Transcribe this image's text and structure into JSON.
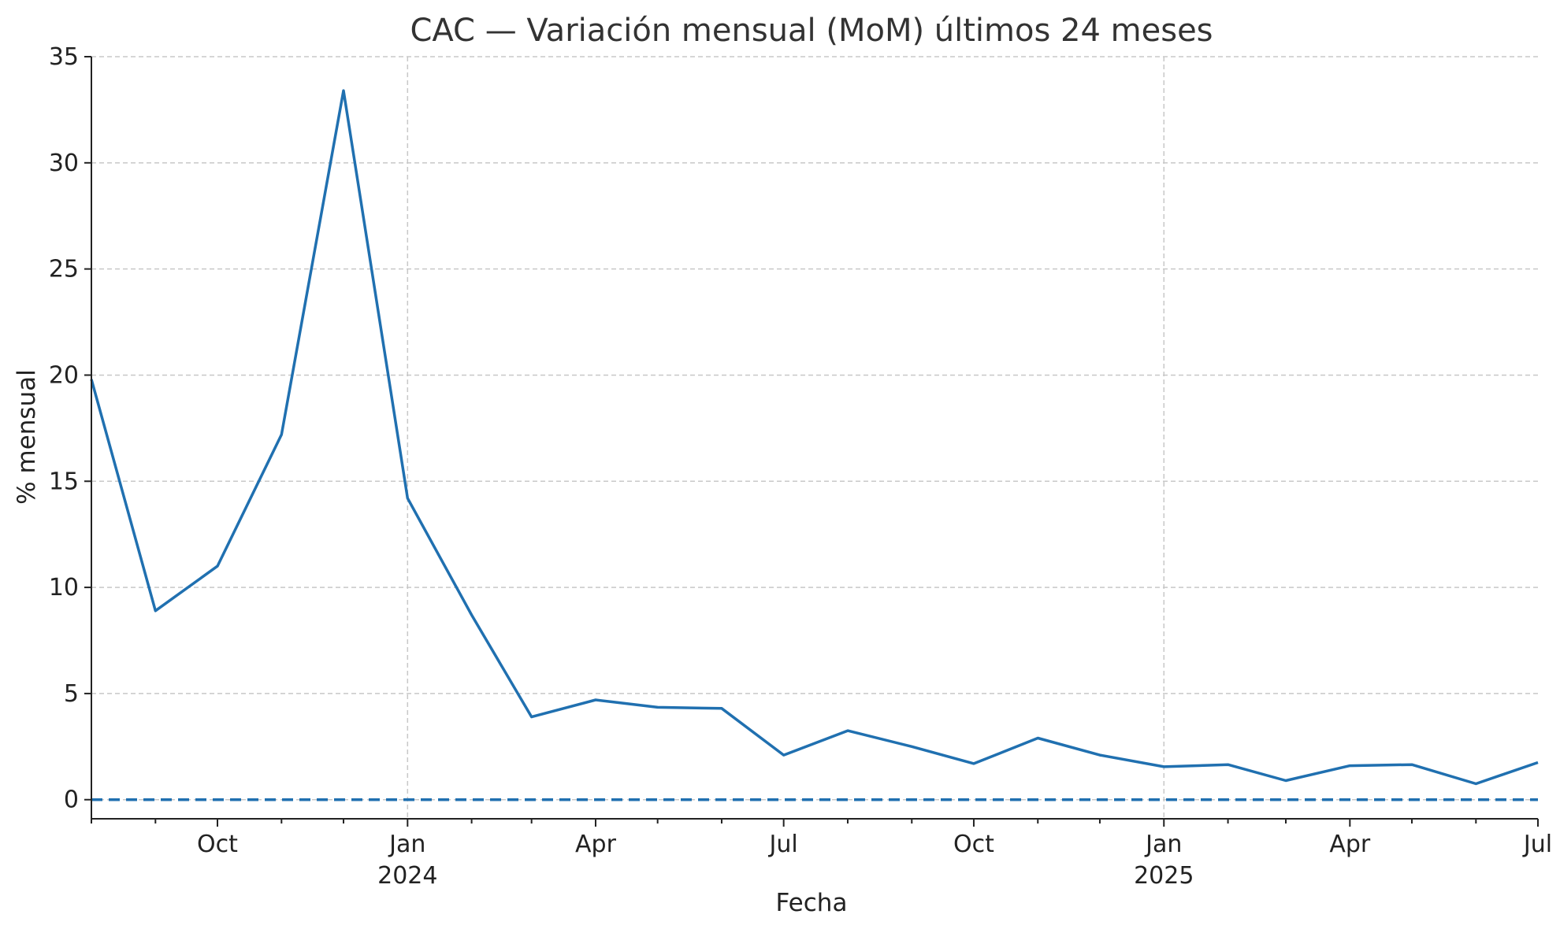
{
  "chart_data": {
    "type": "line",
    "title": "CAC — Variación mensual (MoM) últimos 24 meses",
    "xlabel": "Fecha",
    "ylabel": "% mensual",
    "ylim": [
      -0.9,
      35
    ],
    "yticks": [
      0,
      5,
      10,
      15,
      20,
      25,
      30,
      35
    ],
    "xlim": [
      "2023-08-01",
      "2025-07-01"
    ],
    "xticks_major": [
      {
        "date": "2023-10-01",
        "label": "Oct",
        "year": ""
      },
      {
        "date": "2024-01-01",
        "label": "Jan",
        "year": "2024"
      },
      {
        "date": "2024-04-01",
        "label": "Apr",
        "year": ""
      },
      {
        "date": "2024-07-01",
        "label": "Jul",
        "year": ""
      },
      {
        "date": "2024-10-01",
        "label": "Oct",
        "year": ""
      },
      {
        "date": "2025-01-01",
        "label": "Jan",
        "year": "2025"
      },
      {
        "date": "2025-04-01",
        "label": "Apr",
        "year": ""
      },
      {
        "date": "2025-07-01",
        "label": "Jul",
        "year": ""
      }
    ],
    "grid": true,
    "reference_line": {
      "y": 0,
      "style": "dashed"
    },
    "series": [
      {
        "color": "#2070b0",
        "x": [
          "2023-08-01",
          "2023-09-01",
          "2023-10-01",
          "2023-11-01",
          "2023-12-01",
          "2024-01-01",
          "2024-02-01",
          "2024-03-01",
          "2024-04-01",
          "2024-05-01",
          "2024-06-01",
          "2024-07-01",
          "2024-08-01",
          "2024-09-01",
          "2024-10-01",
          "2024-11-01",
          "2024-12-01",
          "2025-01-01",
          "2025-02-01",
          "2025-03-01",
          "2025-04-01",
          "2025-05-01",
          "2025-06-01",
          "2025-07-01"
        ],
        "values": [
          19.8,
          8.9,
          11.0,
          17.2,
          33.4,
          14.2,
          8.7,
          3.9,
          4.7,
          4.35,
          4.3,
          2.1,
          3.25,
          2.5,
          1.7,
          2.9,
          2.1,
          1.55,
          1.65,
          0.9,
          1.6,
          1.65,
          0.75,
          1.75
        ]
      }
    ]
  }
}
